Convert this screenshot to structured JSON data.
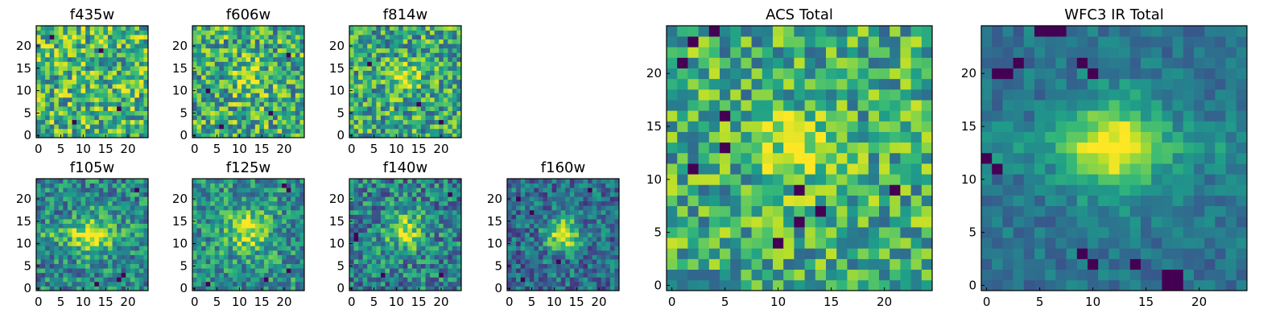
{
  "figure": {
    "background": "#ffffff"
  },
  "colormap": {
    "name": "viridis",
    "stops": [
      "#440154",
      "#482878",
      "#3e4a89",
      "#31688e",
      "#26828e",
      "#1f9e89",
      "#35b779",
      "#6ece58",
      "#b5de2b",
      "#fde725"
    ]
  },
  "chart_data": [
    {
      "type": "heatmap",
      "title": "f435w",
      "grid": [
        25,
        25
      ],
      "xlim": [
        -0.5,
        24.5
      ],
      "ylim": [
        -0.5,
        24.5
      ],
      "x_ticks": [
        0,
        5,
        10,
        15,
        20
      ],
      "y_ticks": [
        0,
        5,
        10,
        15,
        20
      ],
      "source": {
        "seed": 11,
        "noise": 0.34,
        "base": 0.66,
        "blob": null,
        "bands": [],
        "dark_pixels": [
          [
            8,
            3
          ],
          [
            18,
            6
          ],
          [
            14,
            19
          ],
          [
            3,
            22
          ]
        ]
      }
    },
    {
      "type": "heatmap",
      "title": "f606w",
      "grid": [
        25,
        25
      ],
      "xlim": [
        -0.5,
        24.5
      ],
      "ylim": [
        -0.5,
        24.5
      ],
      "x_ticks": [
        0,
        5,
        10,
        15,
        20
      ],
      "y_ticks": [
        0,
        5,
        10,
        15,
        20
      ],
      "source": {
        "seed": 23,
        "noise": 0.34,
        "base": 0.62,
        "blob": {
          "cx": 12,
          "cy": 13,
          "sigma": 2.6,
          "amp": 0.28
        },
        "bands": [],
        "dark_pixels": [
          [
            3,
            10
          ],
          [
            6,
            2
          ],
          [
            17,
            5
          ],
          [
            21,
            18
          ]
        ]
      }
    },
    {
      "type": "heatmap",
      "title": "f814w",
      "grid": [
        25,
        25
      ],
      "xlim": [
        -0.5,
        24.5
      ],
      "ylim": [
        -0.5,
        24.5
      ],
      "x_ticks": [
        0,
        5,
        10,
        15,
        20
      ],
      "y_ticks": [
        0,
        5,
        10,
        15,
        20
      ],
      "source": {
        "seed": 37,
        "noise": 0.32,
        "base": 0.6,
        "blob": {
          "cx": 12,
          "cy": 13,
          "sigma": 2.2,
          "amp": 0.35
        },
        "bands": [],
        "dark_pixels": [
          [
            15,
            7
          ],
          [
            20,
            3
          ],
          [
            4,
            16
          ]
        ]
      }
    },
    {
      "type": "heatmap",
      "title": "f105w",
      "grid": [
        25,
        25
      ],
      "xlim": [
        -0.5,
        24.5
      ],
      "ylim": [
        -0.5,
        24.5
      ],
      "x_ticks": [
        0,
        5,
        10,
        15,
        20
      ],
      "y_ticks": [
        0,
        5,
        10,
        15,
        20
      ],
      "source": {
        "seed": 41,
        "noise": 0.26,
        "base": 0.46,
        "blob": {
          "cx": 12,
          "cy": 12,
          "sigma": 3.2,
          "amp": 0.42
        },
        "bands": [
          {
            "y": 12,
            "amp": 0.14
          }
        ],
        "dark_pixels": [
          [
            18,
            2
          ],
          [
            19,
            3
          ],
          [
            13,
            1
          ],
          [
            22,
            22
          ]
        ]
      }
    },
    {
      "type": "heatmap",
      "title": "f125w",
      "grid": [
        25,
        25
      ],
      "xlim": [
        -0.5,
        24.5
      ],
      "ylim": [
        -0.5,
        24.5
      ],
      "x_ticks": [
        0,
        5,
        10,
        15,
        20
      ],
      "y_ticks": [
        0,
        5,
        10,
        15,
        20
      ],
      "source": {
        "seed": 53,
        "noise": 0.26,
        "base": 0.5,
        "blob": {
          "cx": 12,
          "cy": 13,
          "sigma": 3.4,
          "amp": 0.4
        },
        "bands": [],
        "dark_pixels": [
          [
            20,
            23
          ],
          [
            21,
            22
          ],
          [
            21,
            4
          ],
          [
            16,
            2
          ],
          [
            3,
            1
          ]
        ]
      }
    },
    {
      "type": "heatmap",
      "title": "f140w",
      "grid": [
        25,
        25
      ],
      "xlim": [
        -0.5,
        24.5
      ],
      "ylim": [
        -0.5,
        24.5
      ],
      "x_ticks": [
        0,
        5,
        10,
        15,
        20
      ],
      "y_ticks": [
        0,
        5,
        10,
        15,
        20
      ],
      "source": {
        "seed": 67,
        "noise": 0.28,
        "base": 0.44,
        "blob": {
          "cx": 12,
          "cy": 13,
          "sigma": 3.0,
          "amp": 0.45
        },
        "bands": [],
        "dark_pixels": [
          [
            1,
            11
          ],
          [
            1,
            12
          ],
          [
            22,
            21
          ],
          [
            20,
            3
          ],
          [
            7,
            3
          ]
        ]
      }
    },
    {
      "type": "heatmap",
      "title": "f160w",
      "grid": [
        25,
        25
      ],
      "xlim": [
        -0.5,
        24.5
      ],
      "ylim": [
        -0.5,
        24.5
      ],
      "x_ticks": [
        0,
        5,
        10,
        15,
        20
      ],
      "y_ticks": [
        0,
        5,
        10,
        15,
        20
      ],
      "source": {
        "seed": 79,
        "noise": 0.24,
        "base": 0.36,
        "blob": {
          "cx": 12,
          "cy": 12,
          "sigma": 2.6,
          "amp": 0.62
        },
        "bands": [],
        "dark_pixels": [
          [
            2,
            20
          ],
          [
            5,
            17
          ],
          [
            11,
            6
          ],
          [
            3,
            2
          ],
          [
            18,
            22
          ]
        ]
      }
    },
    {
      "type": "heatmap",
      "title": "ACS Total",
      "grid": [
        25,
        25
      ],
      "xlim": [
        -0.5,
        24.5
      ],
      "ylim": [
        -0.5,
        24.5
      ],
      "x_ticks": [
        0,
        5,
        10,
        15,
        20
      ],
      "y_ticks": [
        0,
        5,
        10,
        15,
        20
      ],
      "source": {
        "seed": 97,
        "noise": 0.3,
        "base": 0.62,
        "blob": {
          "cx": 12,
          "cy": 13,
          "sigma": 2.4,
          "amp": 0.35
        },
        "bands": [],
        "dark_pixels": [
          [
            5,
            13
          ],
          [
            12,
            9
          ],
          [
            14,
            7
          ],
          [
            12,
            6
          ],
          [
            10,
            4
          ],
          [
            5,
            16
          ],
          [
            4,
            24
          ],
          [
            2,
            23
          ],
          [
            1,
            21
          ],
          [
            21,
            9
          ],
          [
            2,
            11
          ]
        ]
      }
    },
    {
      "type": "heatmap",
      "title": "WFC3 IR Total",
      "grid": [
        25,
        25
      ],
      "xlim": [
        -0.5,
        24.5
      ],
      "ylim": [
        -0.5,
        24.5
      ],
      "x_ticks": [
        0,
        5,
        10,
        15,
        20
      ],
      "y_ticks": [
        0,
        5,
        10,
        15,
        20
      ],
      "source": {
        "seed": 109,
        "noise": 0.12,
        "base": 0.38,
        "blob": {
          "cx": 12,
          "cy": 13,
          "sigma": 3.2,
          "amp": 0.58
        },
        "bands": [
          {
            "y": 13,
            "amp": 0.12
          }
        ],
        "dark_pixels": [
          [
            1,
            20
          ],
          [
            2,
            20
          ],
          [
            3,
            21
          ],
          [
            5,
            24
          ],
          [
            6,
            24
          ],
          [
            7,
            24
          ],
          [
            9,
            21
          ],
          [
            10,
            20
          ],
          [
            0,
            12
          ],
          [
            1,
            11
          ],
          [
            17,
            1
          ],
          [
            18,
            0
          ],
          [
            17,
            0
          ],
          [
            18,
            1
          ],
          [
            10,
            2
          ],
          [
            9,
            3
          ],
          [
            14,
            2
          ]
        ]
      }
    }
  ]
}
